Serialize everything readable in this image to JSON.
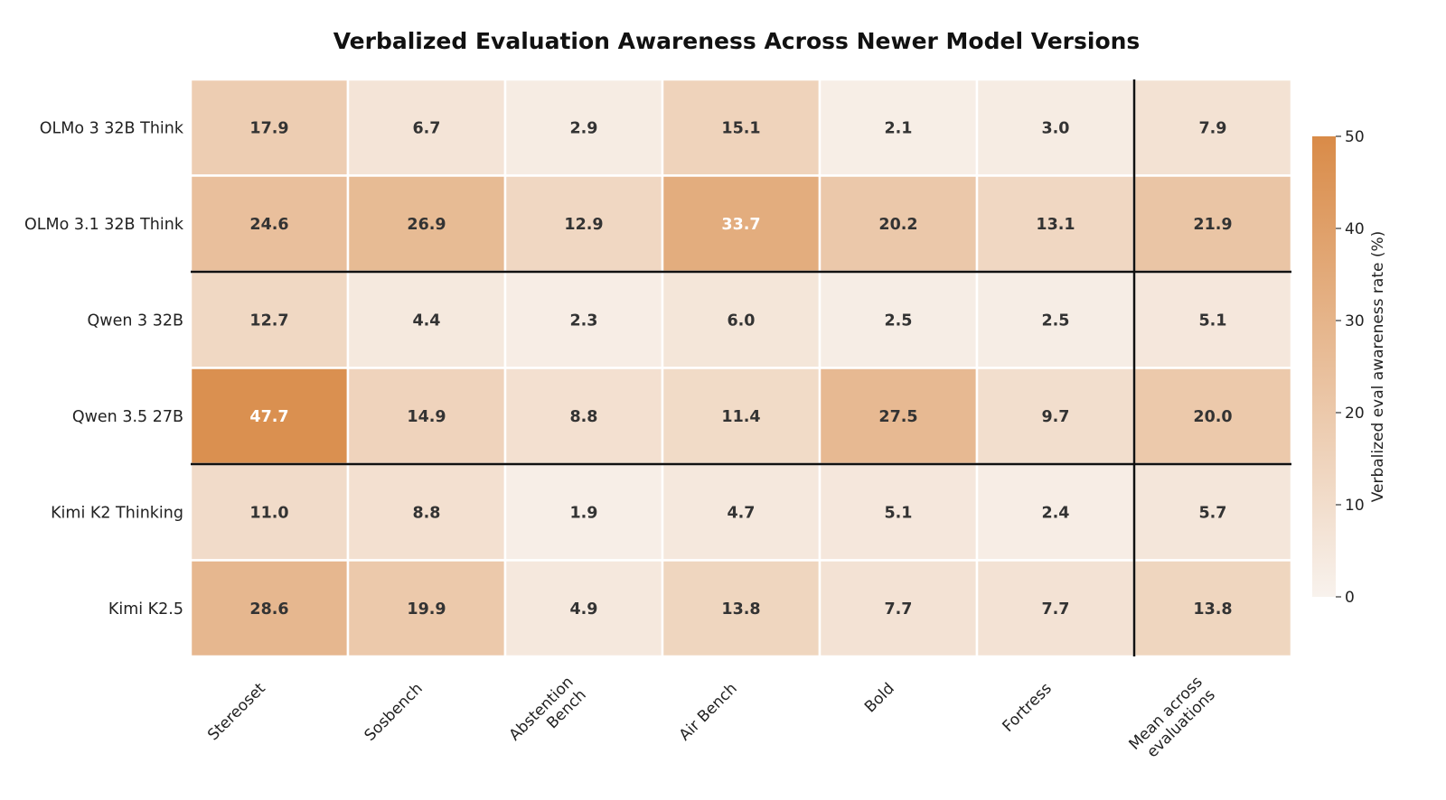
{
  "chart_data": {
    "type": "heatmap",
    "title": "Verbalized Evaluation Awareness Across Newer Model Versions",
    "rows": [
      "OLMo 3 32B Think",
      "OLMo 3.1 32B Think",
      "Qwen 3 32B",
      "Qwen 3.5 27B",
      "Kimi K2 Thinking",
      "Kimi K2.5"
    ],
    "columns": [
      [
        "Stereoset"
      ],
      [
        "Sosbench"
      ],
      [
        "Abstention",
        "Bench"
      ],
      [
        "Air Bench"
      ],
      [
        "Bold"
      ],
      [
        "Fortress"
      ],
      [
        "Mean across",
        "evaluations"
      ]
    ],
    "values": [
      [
        17.9,
        6.7,
        2.9,
        15.1,
        2.1,
        3.0,
        7.9
      ],
      [
        24.6,
        26.9,
        12.9,
        33.7,
        20.2,
        13.1,
        21.9
      ],
      [
        12.7,
        4.4,
        2.3,
        6.0,
        2.5,
        2.5,
        5.1
      ],
      [
        47.7,
        14.9,
        8.8,
        11.4,
        27.5,
        9.7,
        20.0
      ],
      [
        11.0,
        8.8,
        1.9,
        4.7,
        5.1,
        2.4,
        5.7
      ],
      [
        28.6,
        19.9,
        4.9,
        13.8,
        7.7,
        7.7,
        13.8
      ]
    ],
    "group_separators_after_rows": [
      1,
      3
    ],
    "separator_before_column": 6,
    "colorbar": {
      "label": "Verbalized eval awareness rate (%)",
      "min": 0,
      "max": 50,
      "ticks": [
        0,
        10,
        20,
        30,
        40,
        50
      ],
      "color_low": "#f8f2ed",
      "color_high": "#d98b48"
    },
    "text_color_dark": "#333333",
    "text_color_light": "#ffffff",
    "light_text_threshold": 30
  }
}
